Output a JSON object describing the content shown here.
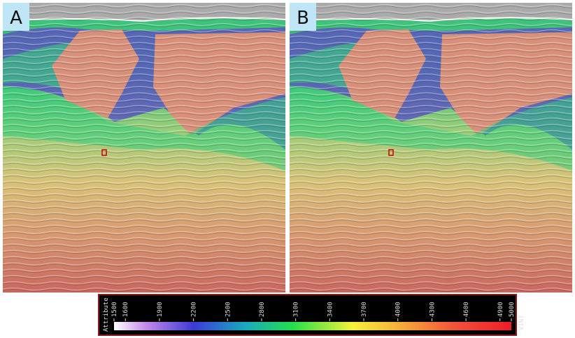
{
  "panels": [
    {
      "label": "A"
    },
    {
      "label": "B"
    }
  ],
  "colorbar": {
    "title": "Attribute",
    "unit": "VINT",
    "ticks": [
      1500,
      1600,
      1900,
      2200,
      2500,
      2800,
      3100,
      3400,
      3700,
      4000,
      4300,
      4600,
      4900,
      5000
    ]
  }
}
